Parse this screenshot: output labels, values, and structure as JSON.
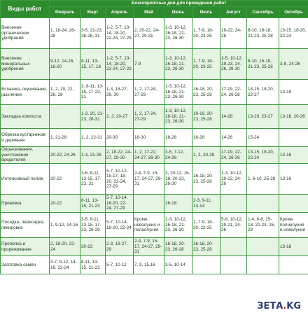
{
  "header": {
    "col0": "Виды работ",
    "group": "Благоприятные дни для проведения работ",
    "months": [
      "Февраль",
      "Март",
      "Апрель",
      "Май",
      "Июнь",
      "Июль",
      "Август",
      "Сентябрь",
      "Октябрь"
    ]
  },
  "rows": [
    {
      "name": "Внесение органических удобрений",
      "cells": [
        "1, 18-24, 26-28",
        "3-5, 21-23, 26-28, 31",
        "1-2, 5-7, 10-14, 18-20, 22-24, 27-29",
        "2, 20-22, 24-27, 29-31",
        "1-3, 10-12, 16-18, 21-23, 26-30",
        "1, 7-9, 18-20, 23-25",
        "19-22, 24-26",
        "6-10, 16-18, 21-23, 25-28",
        "13-15, 18-20, 22-24"
      ]
    },
    {
      "name": "Внесение минеральных удобрений",
      "cells": [
        "9-12, 14-16, 18-20",
        "8-11, 13-15, 17, 18",
        "1-2, 5-7, 10-14, 18-20, 22-24, 27-29",
        "7-9",
        "1-3, 10-12, 16-18, 21-23, 26-30",
        "1, 7-9, 18-20, 23-25",
        "3-5, 10-12, 19-23, 24-26, 28-30",
        "6-10, 16-18, 21-23, 25-28",
        "3-8, 24-26"
      ]
    },
    {
      "name": "Вспашка, окучивание, рыхление",
      "cells": [
        "1, 2, 19, 22, 26, 28",
        "3, 8-11, 13-15, 17-23, 31",
        "1-3, 18-27, 29, 30",
        "1, 2, 17-24, 27-29",
        "1-3, 10-12, 16-18, 21-23, 26-30",
        "16-18, 20-23, 25-28",
        "17-19, 22-24, 26-28",
        "13-15, 18-20, 22-27",
        "13-18"
      ]
    },
    {
      "name": "Закладка компоста",
      "cells": [
        "",
        "1-3, 20, 21-23, 26-31",
        "2, 3, 20-27",
        "1, 2, 17-24, 27-29",
        "1-3, 10-12, 16-18, 21-23, 26-30",
        "16-18, 20-23, 25-28",
        "14-28",
        "13-20, 23-27",
        "13-18, 20-26"
      ]
    },
    {
      "name": "Обрезка кустарников и деревьев",
      "cells": [
        "1, 21-28",
        "1, 2, 22-31",
        "20-30",
        "18-30",
        "18-28",
        "16-28",
        "14-26",
        "15-24",
        ""
      ]
    },
    {
      "name": "Опрыскивания, уничтожение вредителей",
      "cells": [
        "20-22, 24-26",
        "1-3, 21-26",
        "2, 18-22, 24-27, 29-30",
        "1, 2, 17-22, 24-27, 28-30",
        "3-5, 7-12, 24-29",
        "1, 2, 20-28",
        "17-19, 22-24, 26-28",
        "13-15, 18-20, 22-24",
        "13-18"
      ]
    },
    {
      "name": "Интенсивный полив",
      "cells": [
        "20-22",
        "3-6, 8-11, 13-15, 17-23, 31",
        "5-7, 10-12, 15-17, 18-20, 22-24, 27-29",
        "2-4, 7-9, 15-17, 24-27, 29-31",
        "3, 10-12, 16-18, 20-23, 26-30",
        "16-18, 20-23, 25-28",
        "1-3, 10-12, 19-22, 24-26",
        "1, 6-10, 25-28",
        "13-16"
      ]
    },
    {
      "name": "Прививка",
      "cells": [
        "20-22",
        "8-11, 13-15, 21-23",
        "5-7, 10-14, 18-20, 22-24, 27-29",
        "",
        "16-18",
        "2-3, 9-11, 13-14",
        "",
        "",
        ""
      ]
    },
    {
      "name": "Посадка, пересадка, пикировка",
      "cells": [
        "1, 9-12, 14-16",
        "3-5, 8-11, 13-15, 17-23, 26-29",
        "5-7, 10-14, 18-20, 22-24",
        "Кроме новолуния и полнолуния",
        "1-3, 10-12, 16-18, 21-23, 26-30",
        "1, 7-9, 18-20, 23-25",
        "5-8, 10-12, 19-21, 24-26",
        "1-4, 6-8, 15-18, 20-23, 26, 29",
        "Кроме полнолуния и новолуния"
      ]
    },
    {
      "name": "Прополка и прореживание",
      "cells": [
        "2, 18-20, 22-24",
        "20-23",
        "2-3, 18-27, 29",
        "2-4, 7-9, 15-17, 24-27, 29-31",
        "16-18, 20-23, 26-28",
        "16-18, 20-23, 25-28",
        "",
        "",
        "13-18"
      ]
    },
    {
      "name": "Заготовка семян",
      "cells": [
        "4-7, 9-12, 14-16, 22-24",
        "8-11, 13-15, 21-23",
        "5-7, 10-12",
        "7, 9, 15,16",
        "3-5, 10-14",
        "",
        "",
        "",
        ""
      ]
    }
  ],
  "watermark": {
    "left": "ЗЕТА",
    "dot": ".",
    "right": "KG"
  }
}
